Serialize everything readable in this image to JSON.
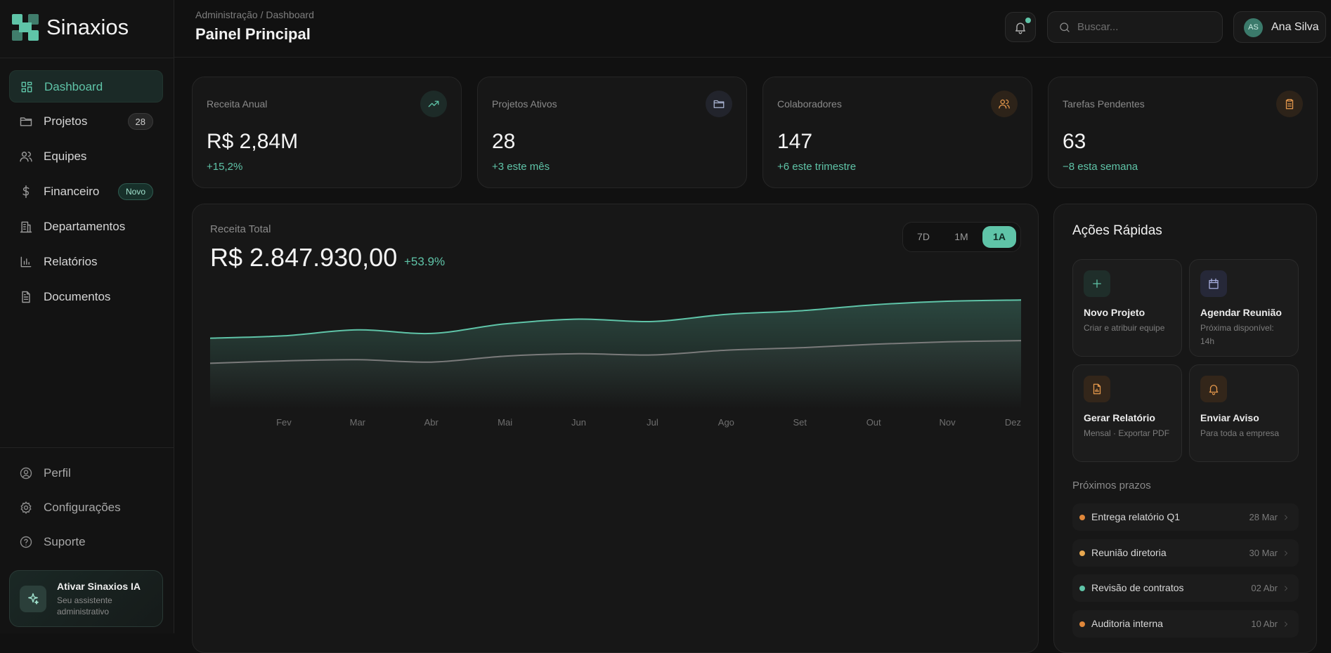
{
  "brand": "Sinaxios",
  "header": {
    "breadcrumb": "Administração / Dashboard",
    "title": "Painel Principal",
    "search_placeholder": "Buscar...",
    "user_initials": "AS",
    "user_name": "Ana Silva"
  },
  "nav": [
    {
      "label": "Dashboard"
    },
    {
      "label": "Projetos",
      "badge": 28
    },
    {
      "label": "Equipes"
    },
    {
      "label": "Financeiro",
      "tag": "Novo"
    },
    {
      "label": "Departamentos"
    },
    {
      "label": "Relatórios"
    },
    {
      "label": "Documentos"
    }
  ],
  "active_nav": 0,
  "nav_bottom": [
    "Perfil",
    "Configurações",
    "Suporte"
  ],
  "ai_card": {
    "title": "Ativar Sinaxios IA",
    "subtitle": "Seu assistente administrativo"
  },
  "stats": [
    {
      "label": "Receita Anual",
      "value": "R$ 2,84M",
      "change": "+15,2%"
    },
    {
      "label": "Projetos Ativos",
      "value": 28,
      "change": "+3 este mês"
    },
    {
      "label": "Colaboradores",
      "value": 147,
      "change": "+6 este trimestre"
    },
    {
      "label": "Tarefas Pendentes",
      "value": 63,
      "change": "−8 esta semana"
    }
  ],
  "revenue": {
    "label": "Receita Total",
    "value": "R$ 2.847.930,00",
    "change": "+53.9%",
    "ranges": [
      "7D",
      "1M",
      "1A"
    ],
    "active_range": 2
  },
  "chart_data": {
    "type": "area",
    "x": [
      null,
      "Fev",
      "Mar",
      "Abr",
      "Mai",
      "Jun",
      "Jul",
      "Ago",
      "Set",
      "Out",
      "Nov",
      "Dez"
    ],
    "series": [
      {
        "color": "#5fc4a8",
        "values": [
          59,
          61,
          66,
          63,
          71,
          75,
          73,
          79,
          82,
          87,
          90,
          91
        ]
      },
      {
        "color": "#7a7a7a",
        "values": [
          38,
          40,
          41,
          39,
          44,
          46,
          45,
          49,
          51,
          54,
          56,
          57
        ]
      }
    ],
    "ylim": [
      0,
      100
    ]
  },
  "quick_actions": {
    "title": "Ações Rápidas",
    "items": [
      {
        "title": "Novo Projeto",
        "subtitle": "Criar e atribuir equipe"
      },
      {
        "title": "Agendar Reunião",
        "subtitle": "Próxima disponível: 14h"
      },
      {
        "title": "Gerar Relatório",
        "subtitle": "Mensal · Exportar PDF"
      },
      {
        "title": "Enviar Aviso",
        "subtitle": "Para toda a empresa"
      }
    ]
  },
  "deadlines": {
    "title": "Próximos prazos",
    "items": [
      {
        "label": "Entrega relatório Q1",
        "date": "28 Mar",
        "color": "#e0873a"
      },
      {
        "label": "Reunião diretoria",
        "date": "30 Mar",
        "color": "#e8a850"
      },
      {
        "label": "Revisão de contratos",
        "date": "02 Abr",
        "color": "#5fc4a8"
      },
      {
        "label": "Auditoria interna",
        "date": "10 Abr",
        "color": "#e0873a"
      }
    ]
  }
}
